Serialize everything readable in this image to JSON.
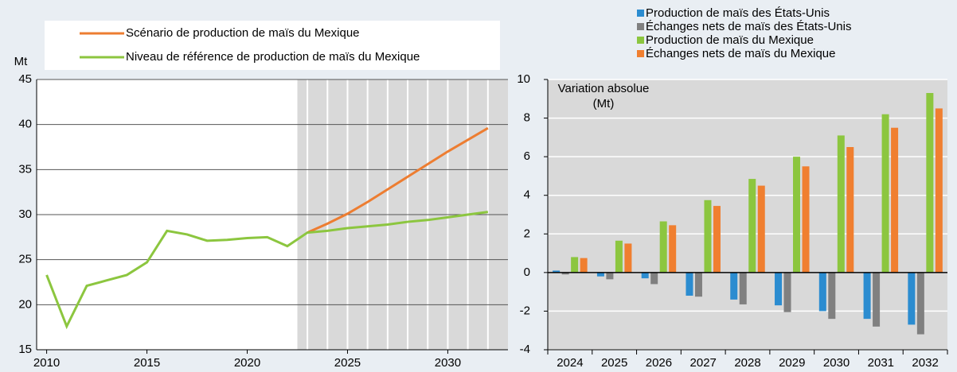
{
  "chart_data": [
    {
      "type": "line",
      "x": [
        2010,
        2011,
        2012,
        2013,
        2014,
        2015,
        2016,
        2017,
        2018,
        2019,
        2020,
        2021,
        2022,
        2023,
        2024,
        2025,
        2026,
        2027,
        2028,
        2029,
        2030,
        2031,
        2032
      ],
      "series": [
        {
          "name": "Scénario de production de maïs du Mexique",
          "color": "#ed7d31",
          "values": [
            null,
            null,
            null,
            null,
            null,
            null,
            null,
            null,
            null,
            null,
            null,
            null,
            null,
            28.0,
            29.0,
            30.1,
            31.4,
            32.8,
            34.2,
            35.6,
            37.0,
            38.3,
            39.6
          ]
        },
        {
          "name": "Niveau de référence de production de maïs du Mexique",
          "color": "#8cc63f",
          "values": [
            23.3,
            17.6,
            22.1,
            22.7,
            23.3,
            24.7,
            28.2,
            27.8,
            27.1,
            27.2,
            27.4,
            27.5,
            26.5,
            28.0,
            28.2,
            28.5,
            28.7,
            28.9,
            29.2,
            29.4,
            29.7,
            30.0,
            30.3
          ]
        }
      ],
      "y_label": "Mt",
      "xlim": [
        2009.5,
        2033
      ],
      "xticks": [
        2010,
        2015,
        2020,
        2025,
        2030
      ],
      "ylim": [
        15,
        45
      ],
      "yticks": [
        15,
        20,
        25,
        30,
        35,
        40,
        45
      ],
      "projection_start": 2022.5,
      "grid": true
    },
    {
      "type": "bar",
      "categories": [
        "2024",
        "2025",
        "2026",
        "2027",
        "2028",
        "2029",
        "2030",
        "2031",
        "2032"
      ],
      "series": [
        {
          "name": "Production de maïs des États-Unis",
          "color": "#2b8cd0",
          "values": [
            0.1,
            -0.2,
            -0.3,
            -1.2,
            -1.4,
            -1.7,
            -2.0,
            -2.4,
            -2.7
          ]
        },
        {
          "name": "Échanges nets de maïs des États-Unis",
          "color": "#808080",
          "values": [
            -0.1,
            -0.35,
            -0.6,
            -1.25,
            -1.65,
            -2.05,
            -2.4,
            -2.8,
            -3.2
          ]
        },
        {
          "name": "Production de maïs du Mexique",
          "color": "#8cc63f",
          "values": [
            0.8,
            1.65,
            2.65,
            3.75,
            4.85,
            6.0,
            7.1,
            8.2,
            9.3
          ]
        },
        {
          "name": "Échanges nets de maïs du Mexique",
          "color": "#f07f30",
          "values": [
            0.75,
            1.5,
            2.45,
            3.45,
            4.5,
            5.5,
            6.5,
            7.5,
            8.5
          ]
        }
      ],
      "annotation": "Variation absolue (Mt)",
      "ylim": [
        -4,
        10
      ],
      "yticks": [
        -4,
        -2,
        0,
        2,
        4,
        6,
        8,
        10
      ],
      "grid": true
    }
  ]
}
